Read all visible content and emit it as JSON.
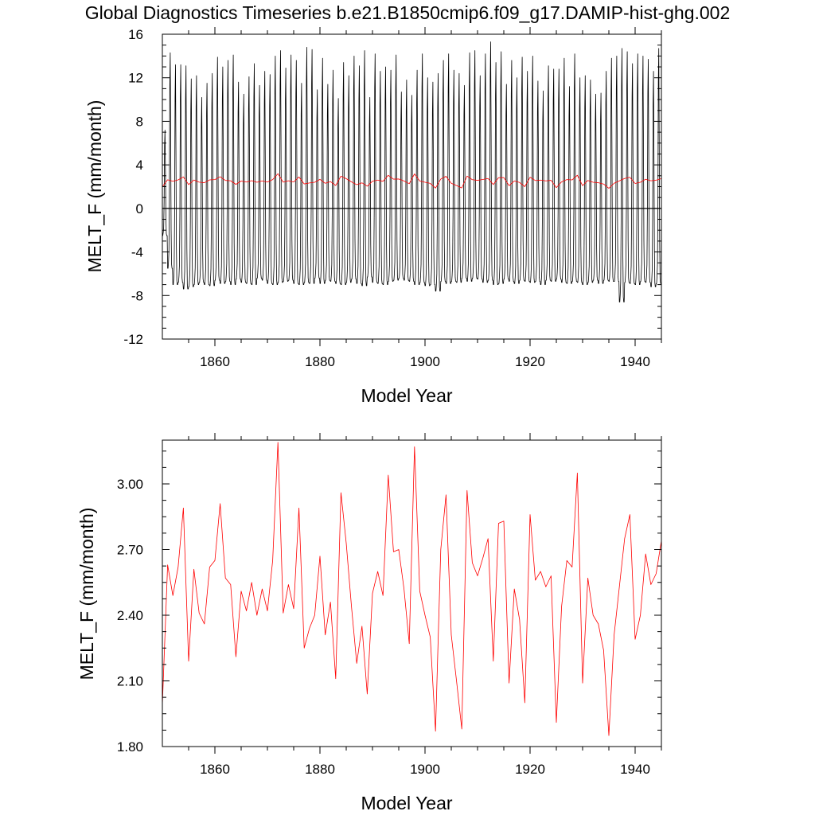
{
  "page_title": "Global Diagnostics Timeseries b.e21.B1850cmip6.f09_g17.DAMIP-hist-ghg.002",
  "colors": {
    "monthly_line": "#000000",
    "annual_line": "#ff0000",
    "zero_line": "#000000",
    "axes": "#000000",
    "background": "#ffffff"
  },
  "chart_data": [
    {
      "type": "line",
      "title": "",
      "xlabel": "Model Year",
      "ylabel": "MELT_F (mm/month)",
      "xlim": [
        1850,
        1945
      ],
      "ylim": [
        -12,
        16
      ],
      "xticks": [
        1860,
        1880,
        1900,
        1920,
        1940
      ],
      "xtick_labels": [
        "1860",
        "1880",
        "1900",
        "1920",
        "1940"
      ],
      "yticks": [
        -12,
        -8,
        -4,
        0,
        4,
        8,
        12,
        16
      ],
      "ytick_labels": [
        "-12",
        "-8",
        "-4",
        "0",
        "4",
        "8",
        "12",
        "16"
      ],
      "grid": false,
      "reference_line": {
        "y": 0
      },
      "monthly_series": {
        "resolution": "monthly",
        "start_year": 1850,
        "annual_max": [
          7.2,
          14.3,
          13.2,
          13.2,
          13.1,
          11.9,
          12.2,
          10.2,
          11.5,
          12.4,
          13.9,
          13.0,
          13.6,
          14.1,
          11.6,
          10.5,
          12.1,
          13.3,
          11.3,
          12.6,
          12.3,
          14.0,
          14.5,
          12.9,
          14.1,
          13.6,
          11.5,
          14.8,
          14.6,
          10.9,
          13.8,
          11.4,
          12.7,
          10.1,
          13.4,
          12.2,
          14.0,
          13.1,
          14.5,
          10.2,
          14.2,
          12.6,
          13.0,
          12.7,
          14.1,
          10.7,
          11.8,
          10.4,
          12.7,
          14.2,
          12.0,
          11.6,
          12.4,
          13.6,
          14.2,
          12.7,
          12.4,
          11.3,
          14.3,
          14.5,
          12.2,
          14.2,
          15.3,
          13.4,
          14.4,
          11.4,
          13.6,
          12.0,
          13.9,
          12.6,
          14.0,
          11.7,
          10.8,
          13.1,
          12.8,
          12.8,
          13.8,
          11.2,
          14.2,
          12.0,
          12.2,
          11.8,
          10.5,
          10.6,
          12.6,
          13.8,
          14.0,
          14.7,
          14.4,
          13.3,
          14.2,
          14.0,
          13.7,
          12.6,
          14.7
        ],
        "annual_min": [
          -2.5,
          -5.5,
          -7.0,
          -6.8,
          -7.4,
          -7.2,
          -7.0,
          -6.8,
          -7.0,
          -7.1,
          -6.6,
          -6.9,
          -6.7,
          -7.0,
          -6.5,
          -6.8,
          -6.9,
          -7.0,
          -6.4,
          -6.6,
          -6.9,
          -7.0,
          -6.8,
          -6.7,
          -6.6,
          -6.9,
          -7.0,
          -6.8,
          -6.9,
          -6.4,
          -6.9,
          -6.6,
          -6.7,
          -6.9,
          -7.0,
          -6.8,
          -6.5,
          -6.9,
          -7.1,
          -6.3,
          -6.8,
          -6.9,
          -7.0,
          -6.7,
          -6.6,
          -6.4,
          -6.6,
          -6.7,
          -7.0,
          -6.8,
          -7.1,
          -7.0,
          -7.6,
          -6.7,
          -6.9,
          -6.7,
          -6.8,
          -6.4,
          -6.7,
          -6.4,
          -6.5,
          -6.8,
          -6.6,
          -7.0,
          -6.9,
          -6.5,
          -6.7,
          -6.9,
          -6.6,
          -6.7,
          -6.8,
          -6.7,
          -7.0,
          -6.6,
          -6.7,
          -6.5,
          -6.8,
          -6.9,
          -6.7,
          -6.8,
          -7.0,
          -6.8,
          -6.6,
          -6.9,
          -6.6,
          -6.7,
          -6.7,
          -8.6,
          -6.8,
          -6.9,
          -7.0,
          -6.7,
          -6.8,
          -7.2,
          -6.9
        ]
      },
      "annual_series": {
        "resolution": "annual",
        "x": [
          1850,
          1851,
          1852,
          1853,
          1854,
          1855,
          1856,
          1857,
          1858,
          1859,
          1860,
          1861,
          1862,
          1863,
          1864,
          1865,
          1866,
          1867,
          1868,
          1869,
          1870,
          1871,
          1872,
          1873,
          1874,
          1875,
          1876,
          1877,
          1878,
          1879,
          1880,
          1881,
          1882,
          1883,
          1884,
          1885,
          1886,
          1887,
          1888,
          1889,
          1890,
          1891,
          1892,
          1893,
          1894,
          1895,
          1896,
          1897,
          1898,
          1899,
          1900,
          1901,
          1902,
          1903,
          1904,
          1905,
          1906,
          1907,
          1908,
          1909,
          1910,
          1911,
          1912,
          1913,
          1914,
          1915,
          1916,
          1917,
          1918,
          1919,
          1920,
          1921,
          1922,
          1923,
          1924,
          1925,
          1926,
          1927,
          1928,
          1929,
          1930,
          1931,
          1932,
          1933,
          1934,
          1935,
          1936,
          1937,
          1938,
          1939,
          1940,
          1941,
          1942,
          1943,
          1944,
          1945
        ],
        "y": [
          1.99,
          2.63,
          2.49,
          2.62,
          2.89,
          2.19,
          2.61,
          2.41,
          2.36,
          2.62,
          2.65,
          2.91,
          2.57,
          2.54,
          2.21,
          2.51,
          2.42,
          2.55,
          2.4,
          2.52,
          2.42,
          2.65,
          3.19,
          2.41,
          2.54,
          2.43,
          2.89,
          2.25,
          2.34,
          2.4,
          2.67,
          2.31,
          2.46,
          2.11,
          2.96,
          2.73,
          2.44,
          2.18,
          2.35,
          2.04,
          2.5,
          2.6,
          2.49,
          3.04,
          2.69,
          2.7,
          2.52,
          2.27,
          3.17,
          2.51,
          2.4,
          2.3,
          1.87,
          2.7,
          2.95,
          2.31,
          2.1,
          1.88,
          2.97,
          2.64,
          2.58,
          2.66,
          2.75,
          2.19,
          2.82,
          2.83,
          2.09,
          2.52,
          2.38,
          2.0,
          2.86,
          2.56,
          2.6,
          2.53,
          2.58,
          1.91,
          2.44,
          2.65,
          2.62,
          3.05,
          2.09,
          2.57,
          2.4,
          2.36,
          2.24,
          1.85,
          2.31,
          2.53,
          2.75,
          2.86,
          2.29,
          2.4,
          2.68,
          2.54,
          2.59,
          2.74
        ]
      }
    },
    {
      "type": "line",
      "title": "",
      "xlabel": "Model Year",
      "ylabel": "MELT_F (mm/month)",
      "xlim": [
        1850,
        1945
      ],
      "ylim": [
        1.8,
        3.2
      ],
      "xticks": [
        1860,
        1880,
        1900,
        1920,
        1940
      ],
      "xtick_labels": [
        "1860",
        "1880",
        "1900",
        "1920",
        "1940"
      ],
      "yticks": [
        1.8,
        2.1,
        2.4,
        2.7,
        3.0
      ],
      "ytick_labels": [
        "1.80",
        "2.10",
        "2.40",
        "2.70",
        "3.00"
      ],
      "grid": false,
      "series_ref": "annual"
    }
  ]
}
